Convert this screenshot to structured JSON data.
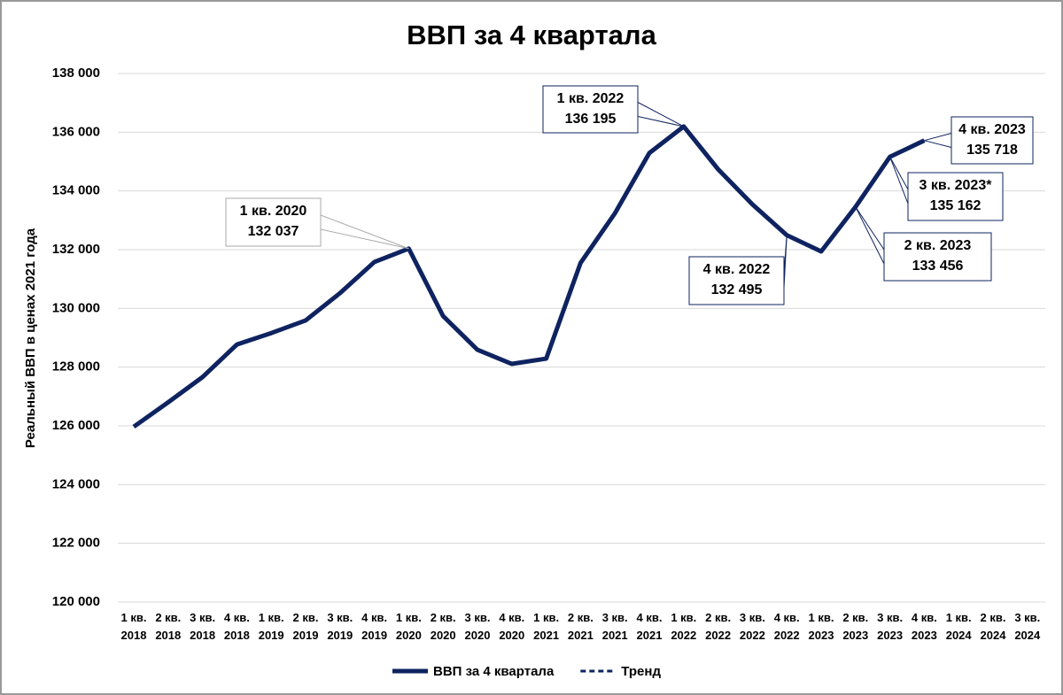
{
  "chart_data": {
    "type": "line",
    "title": "ВВП за 4 квартала",
    "y_label": "Реальный ВВП в ценах 2021 года",
    "categories": [
      "1 кв. 2018",
      "2 кв. 2018",
      "3 кв. 2018",
      "4 кв. 2018",
      "1 кв. 2019",
      "2 кв. 2019",
      "3 кв. 2019",
      "4 кв. 2019",
      "1 кв. 2020",
      "2 кв. 2020",
      "3 кв. 2020",
      "4 кв. 2020",
      "1 кв. 2021",
      "2 кв. 2021",
      "3 кв. 2021",
      "4 кв. 2021",
      "1 кв. 2022",
      "2 кв. 2022",
      "3 кв. 2022",
      "4 кв. 2022",
      "1 кв. 2023",
      "2 кв. 2023",
      "3 кв. 2023",
      "4 кв. 2023",
      "1 кв. 2024",
      "2 кв. 2024",
      "3 кв. 2024"
    ],
    "series": [
      {
        "name": "ВВП за 4 квартала",
        "color": "#0e2360",
        "dash": false,
        "values": [
          125970,
          126800,
          127660,
          128770,
          129160,
          129590,
          130520,
          131580,
          132037,
          129740,
          128590,
          128110,
          128290,
          131550,
          133240,
          135290,
          136195,
          134740,
          133540,
          132495,
          131940,
          133456,
          135162,
          135718,
          null,
          null,
          null
        ]
      },
      {
        "name": "Тренд",
        "color": "#0e2360",
        "dash": true,
        "values": [
          null,
          null,
          null,
          null,
          null,
          null,
          null,
          null,
          null,
          null,
          null,
          null,
          null,
          null,
          null,
          null,
          null,
          null,
          null,
          null,
          null,
          null,
          null,
          null,
          null,
          null,
          null
        ]
      }
    ],
    "annotations": [
      {
        "text": "1 кв. 2020",
        "value": 132037,
        "value_label": "132 037"
      },
      {
        "text": "1 кв. 2022",
        "value": 136195,
        "value_label": "136 195"
      },
      {
        "text": "4 кв. 2022",
        "value": 132495,
        "value_label": "132 495"
      },
      {
        "text": "2 кв. 2023",
        "value": 133456,
        "value_label": "133 456"
      },
      {
        "text": "3 кв. 2023*",
        "value": 135162,
        "value_label": "135 162"
      },
      {
        "text": "4 кв. 2023",
        "value": 135718,
        "value_label": "135 718"
      }
    ],
    "ylim": [
      120000,
      138000
    ],
    "yticks": [
      {
        "value": 120000,
        "label": "120 000"
      },
      {
        "value": 122000,
        "label": "122 000"
      },
      {
        "value": 124000,
        "label": "124 000"
      },
      {
        "value": 126000,
        "label": "126 000"
      },
      {
        "value": 128000,
        "label": "128 000"
      },
      {
        "value": 130000,
        "label": "130 000"
      },
      {
        "value": 132000,
        "label": "132 000"
      },
      {
        "value": 134000,
        "label": "134 000"
      },
      {
        "value": 136000,
        "label": "136 000"
      },
      {
        "value": 138000,
        "label": "138 000"
      }
    ],
    "grid": true,
    "legend": "bottom"
  }
}
